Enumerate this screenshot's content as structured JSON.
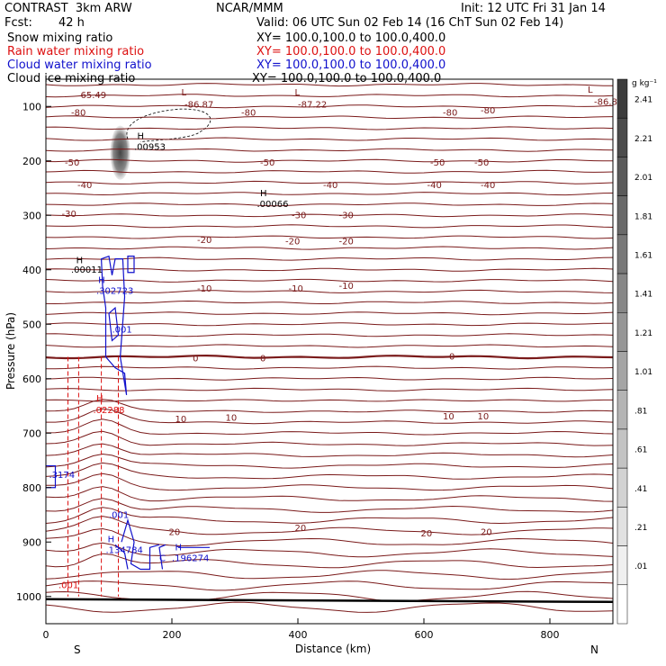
{
  "header": {
    "model": "CONTRAST  3km ARW",
    "center": "NCAR/MMM",
    "init": "Init: 12 UTC Fri 31 Jan 14",
    "fcst_label": "Fcst:",
    "fcst_value": "42 h",
    "valid": "Valid: 06 UTC Sun 02 Feb 14 (16 ChT Sun 02 Feb 14)"
  },
  "fields": [
    {
      "name": "Snow mixing ratio",
      "xy": "XY= 100.0,100.0 to 100.0,400.0",
      "color": "#000000"
    },
    {
      "name": "Rain water mixing ratio",
      "xy": "XY= 100.0,100.0 to 100.0,400.0",
      "color": "#dd1111"
    },
    {
      "name": "Cloud water mixing ratio",
      "xy": "XY= 100.0,100.0 to 100.0,400.0",
      "color": "#1111cc"
    },
    {
      "name": "Cloud ice mixing ratio",
      "xy": "XY= 100.0,100.0 to 100.0,400.0",
      "color": "#000000"
    }
  ],
  "colors": {
    "temp": "#7a1a1a",
    "rain": "#dd1111",
    "cloud": "#1111cc",
    "ice": "#000000"
  },
  "chart_data": {
    "type": "contour",
    "title": "Vertical cross-section",
    "xlabel": "Distance (km)",
    "ylabel": "Pressure (hPa)",
    "xlim": [
      0,
      900
    ],
    "ylim": [
      1050,
      50
    ],
    "xticks": [
      "0",
      "200",
      "400",
      "600",
      "800"
    ],
    "yticks": [
      "100",
      "200",
      "300",
      "400",
      "500",
      "600",
      "700",
      "800",
      "900",
      "1000"
    ],
    "x_endpoint_labels": [
      "S",
      "N"
    ],
    "colorbar": {
      "unit": "g kg⁻¹",
      "levels": [
        "2.41",
        "2.21",
        "2.01",
        "1.81",
        "1.61",
        "1.41",
        "1.21",
        "1.01",
        ".81",
        ".61",
        ".41",
        ".21",
        ".01"
      ]
    },
    "temperature_contours_C": [
      -80,
      -50,
      -40,
      -30,
      -20,
      -10,
      0,
      10,
      20
    ],
    "labels": [
      {
        "text": "65.49",
        "x": 55,
        "p": 85,
        "c": "temp"
      },
      {
        "text": "L",
        "x": 215,
        "p": 80,
        "c": "temp"
      },
      {
        "text": "-86.87",
        "x": 220,
        "p": 102,
        "c": "temp"
      },
      {
        "text": "L",
        "x": 395,
        "p": 80,
        "c": "temp"
      },
      {
        "text": "-87.22",
        "x": 400,
        "p": 102,
        "c": "temp"
      },
      {
        "text": "L",
        "x": 860,
        "p": 75,
        "c": "temp"
      },
      {
        "text": "-86.8",
        "x": 870,
        "p": 97,
        "c": "temp"
      },
      {
        "text": "-80",
        "x": 40,
        "p": 117,
        "c": "temp"
      },
      {
        "text": "-80",
        "x": 310,
        "p": 117,
        "c": "temp"
      },
      {
        "text": "-80",
        "x": 630,
        "p": 117,
        "c": "temp"
      },
      {
        "text": "-80",
        "x": 690,
        "p": 113,
        "c": "temp"
      },
      {
        "text": "-50",
        "x": 30,
        "p": 209,
        "c": "temp"
      },
      {
        "text": "-50",
        "x": 340,
        "p": 209,
        "c": "temp"
      },
      {
        "text": "-50",
        "x": 610,
        "p": 209,
        "c": "temp"
      },
      {
        "text": "-50",
        "x": 680,
        "p": 209,
        "c": "temp"
      },
      {
        "text": "-40",
        "x": 50,
        "p": 250,
        "c": "temp"
      },
      {
        "text": "-40",
        "x": 440,
        "p": 250,
        "c": "temp"
      },
      {
        "text": "-40",
        "x": 605,
        "p": 250,
        "c": "temp"
      },
      {
        "text": "-40",
        "x": 690,
        "p": 250,
        "c": "temp"
      },
      {
        "text": "-30",
        "x": 25,
        "p": 303,
        "c": "temp"
      },
      {
        "text": "-30",
        "x": 390,
        "p": 305,
        "c": "temp"
      },
      {
        "text": "-30",
        "x": 465,
        "p": 305,
        "c": "temp"
      },
      {
        "text": "-20",
        "x": 240,
        "p": 351,
        "c": "temp"
      },
      {
        "text": "-20",
        "x": 380,
        "p": 353,
        "c": "temp"
      },
      {
        "text": "-20",
        "x": 465,
        "p": 353,
        "c": "temp"
      },
      {
        "text": "-10",
        "x": 240,
        "p": 440,
        "c": "temp"
      },
      {
        "text": "-10",
        "x": 385,
        "p": 440,
        "c": "temp"
      },
      {
        "text": "-10",
        "x": 465,
        "p": 435,
        "c": "temp"
      },
      {
        "text": "0",
        "x": 233,
        "p": 568,
        "c": "temp"
      },
      {
        "text": "0",
        "x": 340,
        "p": 568,
        "c": "temp"
      },
      {
        "text": "0",
        "x": 640,
        "p": 565,
        "c": "temp"
      },
      {
        "text": "10",
        "x": 205,
        "p": 680,
        "c": "temp"
      },
      {
        "text": "10",
        "x": 285,
        "p": 677,
        "c": "temp"
      },
      {
        "text": "10",
        "x": 630,
        "p": 675,
        "c": "temp"
      },
      {
        "text": "10",
        "x": 685,
        "p": 675,
        "c": "temp"
      },
      {
        "text": "20",
        "x": 195,
        "p": 887,
        "c": "temp"
      },
      {
        "text": "20",
        "x": 395,
        "p": 880,
        "c": "temp"
      },
      {
        "text": "20",
        "x": 595,
        "p": 890,
        "c": "temp"
      },
      {
        "text": "20",
        "x": 690,
        "p": 887,
        "c": "temp"
      },
      {
        "text": "H",
        "x": 145,
        "p": 160,
        "c": "ice"
      },
      {
        "text": ".00953",
        "x": 140,
        "p": 180,
        "c": "ice"
      },
      {
        "text": "H",
        "x": 340,
        "p": 265,
        "c": "ice"
      },
      {
        "text": ".00066",
        "x": 335,
        "p": 285,
        "c": "ice"
      },
      {
        "text": "H",
        "x": 48,
        "p": 388,
        "c": "ice"
      },
      {
        "text": ".00011",
        "x": 40,
        "p": 405,
        "c": "ice"
      },
      {
        "text": "H",
        "x": 83,
        "p": 424,
        "c": "cloud"
      },
      {
        "text": ".302723",
        "x": 80,
        "p": 444,
        "c": "cloud"
      },
      {
        "text": ".001",
        "x": 105,
        "p": 515,
        "c": "cloud"
      },
      {
        "text": "H",
        "x": 80,
        "p": 642,
        "c": "rain"
      },
      {
        "text": ".02288",
        "x": 75,
        "p": 663,
        "c": "rain"
      },
      {
        "text": ".3174",
        "x": 5,
        "p": 782,
        "c": "cloud"
      },
      {
        "text": ".001",
        "x": 100,
        "p": 856,
        "c": "cloud"
      },
      {
        "text": "H",
        "x": 98,
        "p": 900,
        "c": "cloud"
      },
      {
        "text": ".134784",
        "x": 95,
        "p": 920,
        "c": "cloud"
      },
      {
        "text": "C",
        "x": 180,
        "p": 935,
        "c": "cloud"
      },
      {
        "text": "H",
        "x": 205,
        "p": 915,
        "c": "cloud"
      },
      {
        "text": ".196274",
        "x": 200,
        "p": 935,
        "c": "cloud"
      },
      {
        "text": ".001",
        "x": 20,
        "p": 985,
        "c": "rain"
      }
    ]
  }
}
